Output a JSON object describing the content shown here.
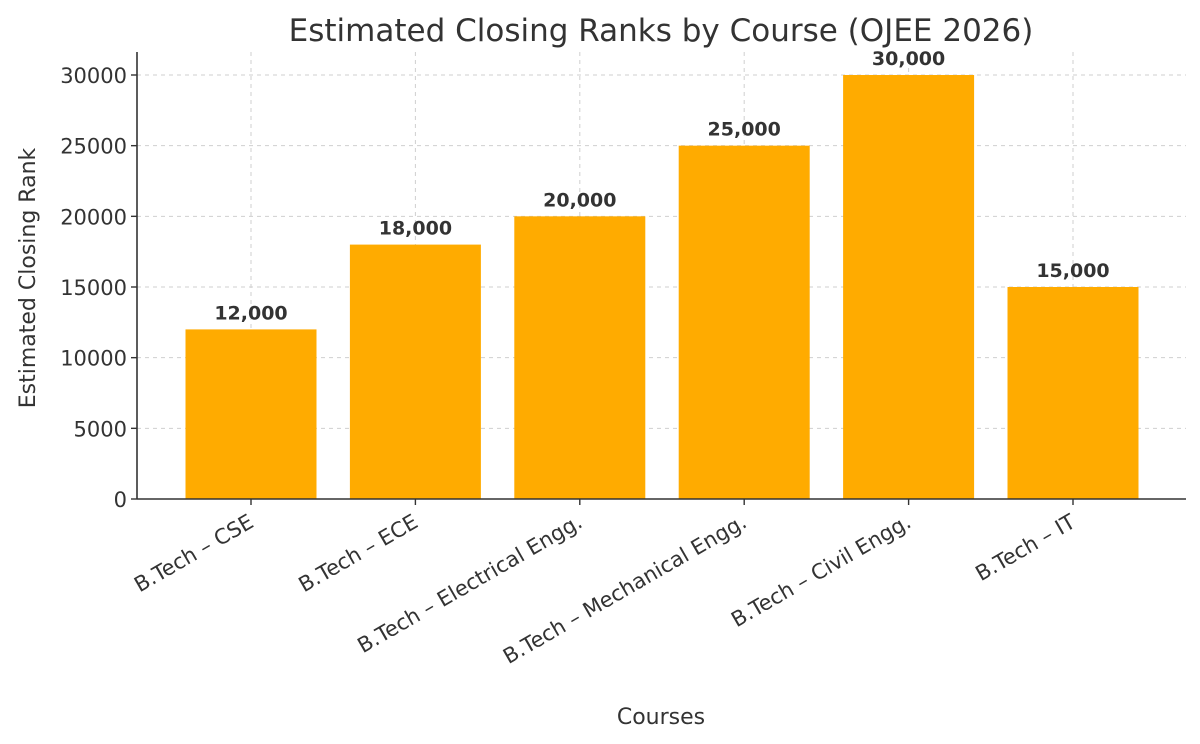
{
  "chart_data": {
    "type": "bar",
    "title": "Estimated Closing Ranks by Course (OJEE 2026)",
    "xlabel": "Courses",
    "ylabel": "Estimated Closing Rank",
    "categories": [
      "B.Tech – CSE",
      "B.Tech – ECE",
      "B.Tech – Electrical Engg.",
      "B.Tech – Mechanical Engg.",
      "B.Tech – Civil Engg.",
      "B.Tech – IT"
    ],
    "values": [
      12000,
      18000,
      20000,
      25000,
      30000,
      15000
    ],
    "data_labels": [
      "12,000",
      "18,000",
      "20,000",
      "25,000",
      "30,000",
      "15,000"
    ],
    "yticks": [
      0,
      5000,
      10000,
      15000,
      20000,
      25000,
      30000
    ],
    "ylim": [
      0,
      30000
    ],
    "grid": true,
    "bar_color": "#ffab00"
  }
}
